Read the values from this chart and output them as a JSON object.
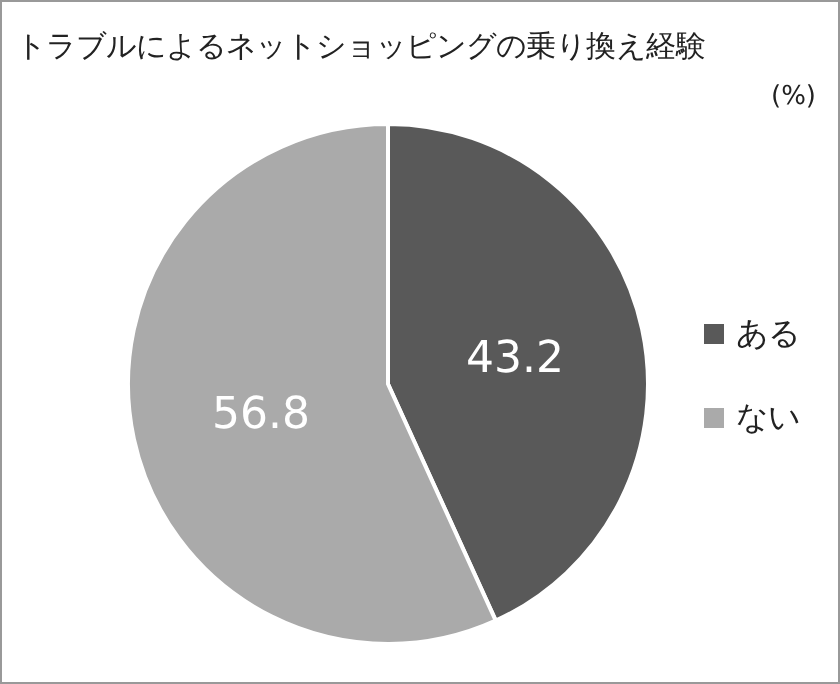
{
  "chart_data": {
    "type": "pie",
    "title": "トラブルによるネットショッピングの乗り換え経験",
    "categories": [
      "ある",
      "ない"
    ],
    "values": [
      43.2,
      56.8
    ],
    "colors": [
      "#595959",
      "#aaaaaa"
    ],
    "data_labels": true,
    "legend": "right",
    "annotations": [
      "(%)"
    ]
  }
}
